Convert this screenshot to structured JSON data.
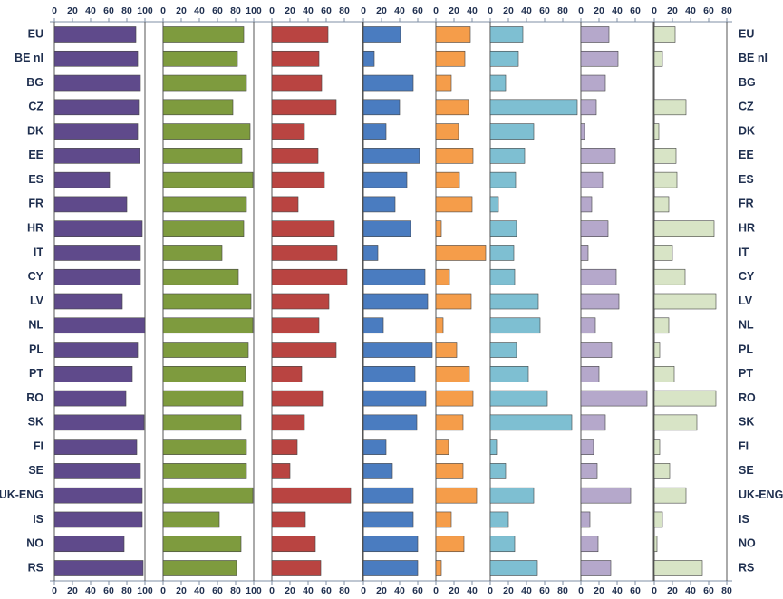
{
  "chart_data": [
    {
      "type": "hbar",
      "color": "#5f4a8b",
      "xlim": [
        0,
        100
      ],
      "xticks": [
        0,
        20,
        40,
        60,
        80,
        100
      ],
      "categories": [
        "EU",
        "BE nl",
        "BG",
        "CZ",
        "DK",
        "EE",
        "ES",
        "FR",
        "HR",
        "IT",
        "CY",
        "LV",
        "NL",
        "PL",
        "PT",
        "RO",
        "SK",
        "FI",
        "SE",
        "UK-ENG",
        "IS",
        "NO",
        "RS"
      ],
      "values": [
        90,
        92,
        95,
        93,
        92,
        94,
        61,
        80,
        97,
        95,
        95,
        75,
        100,
        92,
        86,
        79,
        99,
        91,
        95,
        97,
        97,
        77,
        98
      ]
    },
    {
      "type": "hbar",
      "color": "#7e9b3e",
      "xlim": [
        0,
        100
      ],
      "xticks": [
        0,
        20,
        40,
        60,
        80,
        100
      ],
      "values": [
        89,
        82,
        92,
        77,
        96,
        87,
        99,
        92,
        89,
        65,
        83,
        97,
        99,
        94,
        91,
        88,
        86,
        92,
        92,
        99,
        62,
        86,
        81
      ]
    },
    {
      "type": "hbar",
      "color": "#b94441",
      "xlim": [
        0,
        100
      ],
      "xticks": [
        0,
        20,
        40,
        60,
        80
      ],
      "values": [
        62,
        52,
        55,
        71,
        36,
        51,
        58,
        29,
        69,
        72,
        83,
        63,
        52,
        71,
        33,
        56,
        36,
        28,
        20,
        87,
        37,
        48,
        54
      ]
    },
    {
      "type": "hbar",
      "color": "#4a7cc0",
      "xlim": [
        0,
        80
      ],
      "xticks": [
        0,
        20,
        40,
        60
      ],
      "values": [
        41,
        12,
        55,
        40,
        25,
        62,
        48,
        35,
        52,
        16,
        68,
        71,
        22,
        76,
        57,
        69,
        59,
        25,
        32,
        55,
        55,
        60,
        60
      ]
    },
    {
      "type": "hbar",
      "color": "#f59d4a",
      "xlim": [
        0,
        60
      ],
      "xticks": [
        0,
        20,
        40
      ],
      "values": [
        38,
        32,
        17,
        36,
        25,
        41,
        26,
        40,
        6,
        55,
        15,
        39,
        8,
        23,
        37,
        41,
        30,
        14,
        30,
        45,
        17,
        31,
        6
      ]
    },
    {
      "type": "hbar",
      "color": "#7ebfd2",
      "xlim": [
        0,
        100
      ],
      "xticks": [
        0,
        20,
        40,
        60,
        80
      ],
      "values": [
        36,
        31,
        17,
        96,
        48,
        38,
        28,
        9,
        29,
        26,
        27,
        53,
        55,
        29,
        42,
        63,
        90,
        7,
        17,
        48,
        20,
        27,
        52
      ]
    },
    {
      "type": "hbar",
      "color": "#b5a8cb",
      "xlim": [
        0,
        80
      ],
      "xticks": [
        0,
        20,
        40,
        60
      ],
      "values": [
        31,
        41,
        27,
        17,
        4,
        38,
        24,
        12,
        30,
        8,
        39,
        42,
        16,
        34,
        20,
        73,
        27,
        14,
        18,
        55,
        10,
        19,
        33
      ]
    },
    {
      "type": "hbar",
      "color": "#d8e4c6",
      "xlim": [
        0,
        80
      ],
      "xticks": [
        0,
        20,
        40,
        60,
        80
      ],
      "values": [
        23,
        9,
        0,
        35,
        5,
        24,
        25,
        16,
        66,
        20,
        34,
        68,
        16,
        6,
        22,
        68,
        47,
        6,
        17,
        35,
        9,
        3,
        53
      ]
    }
  ]
}
